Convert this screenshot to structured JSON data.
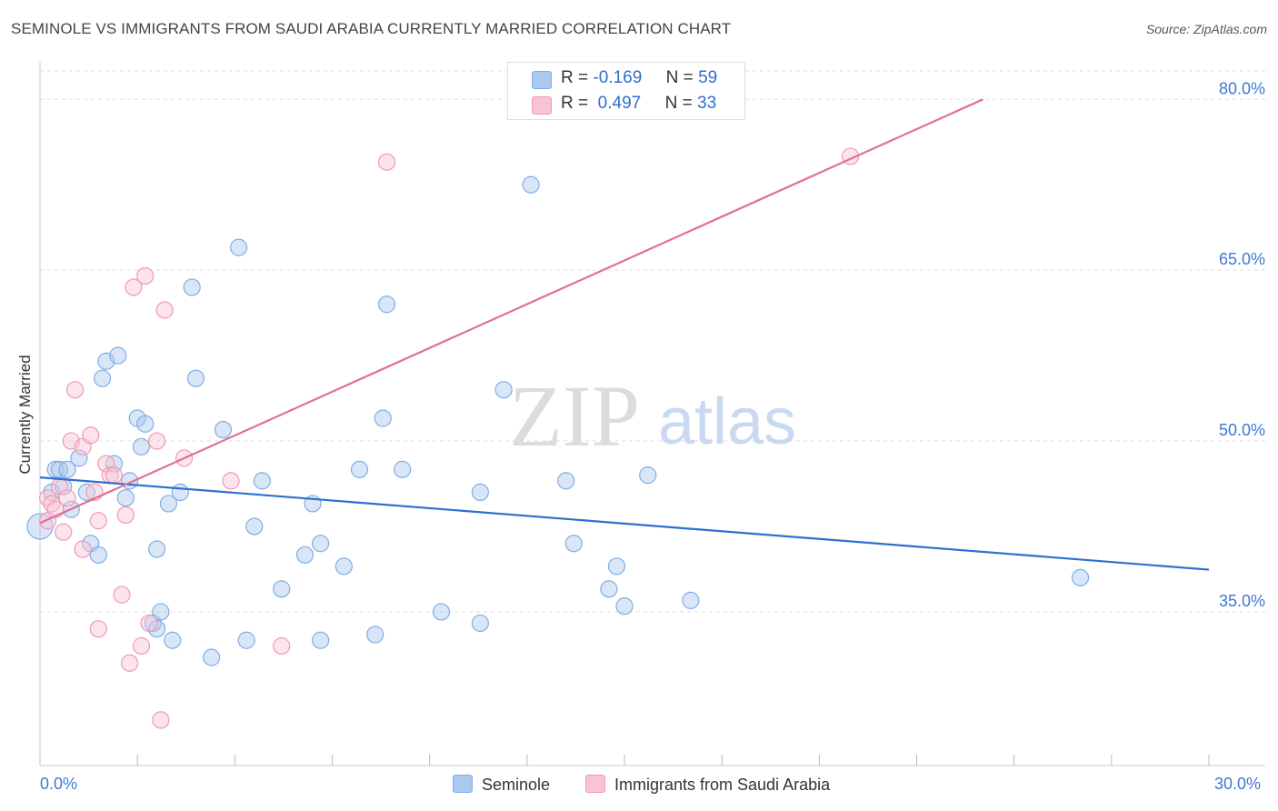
{
  "header": {
    "title": "SEMINOLE VS IMMIGRANTS FROM SAUDI ARABIA CURRENTLY MARRIED CORRELATION CHART",
    "source": "Source: ZipAtlas.com"
  },
  "watermark": {
    "zip": "ZIP",
    "atlas": "atlas"
  },
  "legend": {
    "r_label": "R =",
    "n_label": "N =",
    "series": [
      {
        "name": "Seminole",
        "r": "-0.169",
        "n": "59",
        "fill": "#aac8f0",
        "stroke": "#7faee6"
      },
      {
        "name": "Immigrants from Saudi Arabia",
        "r": "0.497",
        "n": "33",
        "fill": "#f8c4d4",
        "stroke": "#f09ab4"
      }
    ]
  },
  "colors": {
    "blue_line": "#2f6fce",
    "pink_line": "#e07098",
    "axis_text": "#3b78d6",
    "grid": "#dddddd"
  },
  "chart_data": {
    "type": "scatter",
    "title": "SEMINOLE VS IMMIGRANTS FROM SAUDI ARABIA CURRENTLY MARRIED CORRELATION CHART",
    "xlabel": "",
    "ylabel": "Currently Married",
    "xlim": [
      0,
      30
    ],
    "ylim": [
      21.5,
      82.5
    ],
    "x_tick_labels": [
      "0.0%",
      "30.0%"
    ],
    "y_ticks": [
      35,
      50,
      65,
      80
    ],
    "y_tick_labels": [
      "35.0%",
      "50.0%",
      "65.0%",
      "80.0%"
    ],
    "grid": true,
    "series": [
      {
        "name": "Seminole",
        "points": [
          [
            0.0,
            42.5
          ],
          [
            0.3,
            45.5
          ],
          [
            0.4,
            47.5
          ],
          [
            0.5,
            47.5
          ],
          [
            0.7,
            47.5
          ],
          [
            0.8,
            44.0
          ],
          [
            1.0,
            48.5
          ],
          [
            1.2,
            45.5
          ],
          [
            1.3,
            41.0
          ],
          [
            1.5,
            40.0
          ],
          [
            1.6,
            55.5
          ],
          [
            1.7,
            57.0
          ],
          [
            1.9,
            48.0
          ],
          [
            2.0,
            57.5
          ],
          [
            2.2,
            45.0
          ],
          [
            2.3,
            46.5
          ],
          [
            2.5,
            52.0
          ],
          [
            2.6,
            49.5
          ],
          [
            2.7,
            51.5
          ],
          [
            2.9,
            34.0
          ],
          [
            3.0,
            40.5
          ],
          [
            3.1,
            35.0
          ],
          [
            3.3,
            44.5
          ],
          [
            3.4,
            32.5
          ],
          [
            3.6,
            45.5
          ],
          [
            3.9,
            63.5
          ],
          [
            4.0,
            55.5
          ],
          [
            4.4,
            31.0
          ],
          [
            4.7,
            51.0
          ],
          [
            5.1,
            67.0
          ],
          [
            5.3,
            32.5
          ],
          [
            5.5,
            42.5
          ],
          [
            5.7,
            46.5
          ],
          [
            6.2,
            37.0
          ],
          [
            6.8,
            40.0
          ],
          [
            7.0,
            44.5
          ],
          [
            7.2,
            32.5
          ],
          [
            7.2,
            41.0
          ],
          [
            7.8,
            39.0
          ],
          [
            8.2,
            47.5
          ],
          [
            8.6,
            33.0
          ],
          [
            8.8,
            52.0
          ],
          [
            8.9,
            62.0
          ],
          [
            9.3,
            47.5
          ],
          [
            10.3,
            35.0
          ],
          [
            11.3,
            34.0
          ],
          [
            11.3,
            45.5
          ],
          [
            11.9,
            54.5
          ],
          [
            12.6,
            72.5
          ],
          [
            13.5,
            46.5
          ],
          [
            13.7,
            41.0
          ],
          [
            14.6,
            37.0
          ],
          [
            14.8,
            39.0
          ],
          [
            15.0,
            35.5
          ],
          [
            15.6,
            47.0
          ],
          [
            16.7,
            36.0
          ],
          [
            26.7,
            38.0
          ],
          [
            3.0,
            33.5
          ],
          [
            0.6,
            46.0
          ]
        ],
        "trend": [
          [
            0,
            46.8
          ],
          [
            30,
            38.7
          ]
        ]
      },
      {
        "name": "Immigrants from Saudi Arabia",
        "points": [
          [
            0.2,
            45.0
          ],
          [
            0.3,
            44.5
          ],
          [
            0.5,
            46.0
          ],
          [
            0.6,
            42.0
          ],
          [
            0.7,
            45.0
          ],
          [
            0.8,
            50.0
          ],
          [
            0.9,
            54.5
          ],
          [
            1.1,
            40.5
          ],
          [
            1.1,
            49.5
          ],
          [
            1.3,
            50.5
          ],
          [
            1.4,
            45.5
          ],
          [
            1.5,
            43.0
          ],
          [
            1.5,
            33.5
          ],
          [
            1.7,
            48.0
          ],
          [
            1.8,
            47.0
          ],
          [
            1.9,
            47.0
          ],
          [
            2.1,
            36.5
          ],
          [
            2.2,
            43.5
          ],
          [
            2.3,
            30.5
          ],
          [
            2.4,
            63.5
          ],
          [
            2.6,
            32.0
          ],
          [
            2.7,
            64.5
          ],
          [
            2.8,
            34.0
          ],
          [
            3.0,
            50.0
          ],
          [
            3.1,
            25.5
          ],
          [
            3.2,
            61.5
          ],
          [
            3.7,
            48.5
          ],
          [
            4.9,
            46.5
          ],
          [
            6.2,
            32.0
          ],
          [
            8.9,
            74.5
          ],
          [
            20.8,
            75.0
          ],
          [
            0.2,
            43.0
          ],
          [
            0.4,
            44.0
          ]
        ],
        "trend": [
          [
            0,
            42.8
          ],
          [
            24.2,
            80.0
          ]
        ]
      }
    ]
  }
}
